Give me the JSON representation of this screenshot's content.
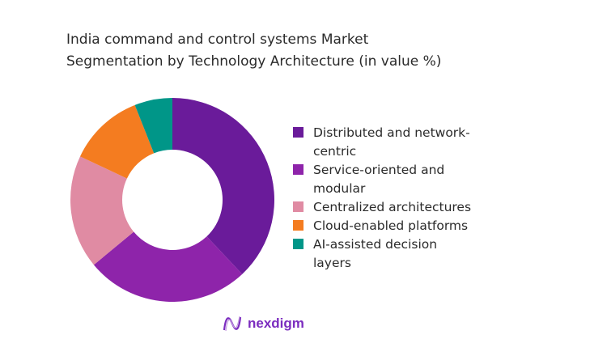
{
  "chart_data": {
    "type": "pie",
    "donut": true,
    "title_lines": [
      "India command and control systems Market",
      "Segmentation by Technology Architecture (in value %)"
    ],
    "categories": [
      "Distributed and network-centric",
      "Service-oriented and modular",
      "Centralized architectures",
      "Cloud-enabled platforms",
      "AI-assisted decision layers"
    ],
    "legend_lines": [
      [
        "Distributed and network-",
        "centric"
      ],
      [
        "Service-oriented and",
        "modular"
      ],
      [
        "Centralized architectures"
      ],
      [
        "Cloud-enabled platforms"
      ],
      [
        "AI-assisted decision",
        "layers"
      ]
    ],
    "values": [
      38,
      26,
      18,
      12,
      6
    ],
    "unit": "%",
    "colors": [
      "#6a1b9a",
      "#8e24aa",
      "#e08ba3",
      "#f47c20",
      "#009688"
    ],
    "legend_position": "right"
  },
  "brand": {
    "name": "nexdigm",
    "color": "#7b2cbf"
  }
}
